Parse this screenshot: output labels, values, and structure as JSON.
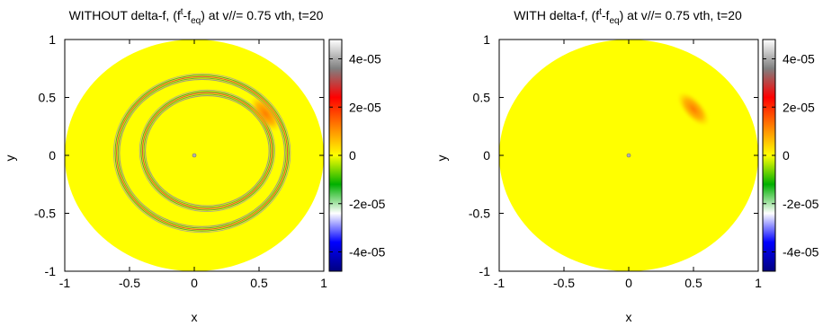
{
  "colors": {
    "background": "#ffffff",
    "disk_zero": "#ffff00",
    "colormap": [
      "#000080",
      "#0000ff",
      "#ffffff",
      "#00b000",
      "#ffff00",
      "#ff8000",
      "#ff0000",
      "#808080",
      "#ffffff"
    ]
  },
  "chart_data": [
    {
      "type": "heatmap",
      "title": "WITHOUT delta-f, (f^t-f_eq) at v//= 0.75 vth, t=20",
      "title_parts": {
        "pre": "WITHOUT delta-f, (f",
        "sup": "t",
        "mid": "-f",
        "sub": "eq",
        "post": ") at v//= 0.75 vth, t=20"
      },
      "xlabel": "x",
      "ylabel": "y",
      "xlim": [
        -1,
        1
      ],
      "ylim": [
        -1,
        1
      ],
      "xticks": [
        "-1",
        "-0.5",
        "0",
        "0.5",
        "1"
      ],
      "yticks": [
        "1",
        "0.5",
        "0",
        "-0.5",
        "-1"
      ],
      "colorbar": {
        "range": [
          -4.8e-05,
          4.8e-05
        ],
        "ticks": [
          "4e-05",
          "2e-05",
          "0",
          "-2e-05",
          "-4e-05"
        ]
      },
      "domain": "disk of radius 1",
      "background_value": 0,
      "features": [
        {
          "kind": "ring",
          "center": [
            0.06,
            0.02
          ],
          "radius": 0.66,
          "amplitude": 2e-05
        },
        {
          "kind": "ring",
          "center": [
            0.1,
            0.04
          ],
          "radius": 0.5,
          "amplitude": 2e-05
        },
        {
          "kind": "blob",
          "center": [
            0.55,
            0.36
          ],
          "amplitude": 2e-05
        },
        {
          "kind": "point",
          "center": [
            0.0,
            0.0
          ]
        }
      ]
    },
    {
      "type": "heatmap",
      "title": "WITH delta-f, (f^t-f_eq) at v//= 0.75 vth, t=20",
      "title_parts": {
        "pre": "WITH delta-f, (f",
        "sup": "t",
        "mid": "-f",
        "sub": "eq",
        "post": ") at v//= 0.75 vth, t=20"
      },
      "xlabel": "x",
      "ylabel": "y",
      "xlim": [
        -1,
        1
      ],
      "ylim": [
        -1,
        1
      ],
      "xticks": [
        "-1",
        "-0.5",
        "0",
        "0.5",
        "1"
      ],
      "yticks": [
        "1",
        "0.5",
        "0",
        "-0.5",
        "-1"
      ],
      "colorbar": {
        "range": [
          -4.8e-05,
          4.8e-05
        ],
        "ticks": [
          "4e-05",
          "2e-05",
          "0",
          "-2e-05",
          "-4e-05"
        ]
      },
      "domain": "disk of radius 1",
      "background_value": 0,
      "features": [
        {
          "kind": "blob",
          "center": [
            0.5,
            0.4
          ],
          "amplitude": 1.6e-05
        },
        {
          "kind": "point",
          "center": [
            0.0,
            0.0
          ]
        }
      ]
    }
  ]
}
